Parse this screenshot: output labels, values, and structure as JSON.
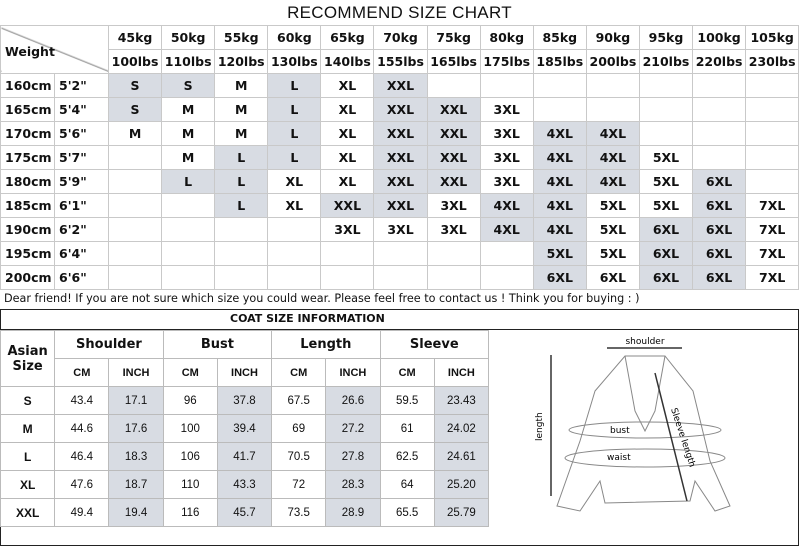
{
  "title": "RECOMMEND SIZE CHART",
  "corner_label": "Weight",
  "weights_kg": [
    "45kg",
    "50kg",
    "55kg",
    "60kg",
    "65kg",
    "70kg",
    "75kg",
    "80kg",
    "85kg",
    "90kg",
    "95kg",
    "100kg",
    "105kg"
  ],
  "weights_lbs": [
    "100lbs",
    "110lbs",
    "120lbs",
    "130lbs",
    "140lbs",
    "155lbs",
    "165lbs",
    "175lbs",
    "185lbs",
    "200lbs",
    "210lbs",
    "220lbs",
    "230lbs"
  ],
  "highlight_color": "#d8dce3",
  "rows": [
    {
      "cm": "160cm",
      "ft": "5'2\"",
      "sizes": [
        "S",
        "S",
        "M",
        "L",
        "XL",
        "XXL",
        "",
        "",
        "",
        "",
        "",
        "",
        ""
      ],
      "shaded": [
        0,
        1,
        3,
        5
      ]
    },
    {
      "cm": "165cm",
      "ft": "5'4\"",
      "sizes": [
        "S",
        "M",
        "M",
        "L",
        "XL",
        "XXL",
        "XXL",
        "3XL",
        "",
        "",
        "",
        "",
        ""
      ],
      "shaded": [
        0,
        3,
        5,
        6
      ]
    },
    {
      "cm": "170cm",
      "ft": "5'6\"",
      "sizes": [
        "M",
        "M",
        "M",
        "L",
        "XL",
        "XXL",
        "XXL",
        "3XL",
        "4XL",
        "4XL",
        "",
        "",
        ""
      ],
      "shaded": [
        3,
        5,
        6,
        8,
        9
      ]
    },
    {
      "cm": "175cm",
      "ft": "5'7\"",
      "sizes": [
        "",
        "M",
        "L",
        "L",
        "XL",
        "XXL",
        "XXL",
        "3XL",
        "4XL",
        "4XL",
        "5XL",
        "",
        ""
      ],
      "shaded": [
        2,
        3,
        5,
        6,
        8,
        9
      ]
    },
    {
      "cm": "180cm",
      "ft": "5'9\"",
      "sizes": [
        "",
        "L",
        "L",
        "XL",
        "XL",
        "XXL",
        "XXL",
        "3XL",
        "4XL",
        "4XL",
        "5XL",
        "6XL",
        ""
      ],
      "shaded": [
        1,
        2,
        5,
        6,
        8,
        9,
        11
      ]
    },
    {
      "cm": "185cm",
      "ft": "6'1\"",
      "sizes": [
        "",
        "",
        "L",
        "XL",
        "XXL",
        "XXL",
        "3XL",
        "4XL",
        "4XL",
        "5XL",
        "5XL",
        "6XL",
        "7XL"
      ],
      "shaded": [
        2,
        4,
        5,
        7,
        8,
        11
      ]
    },
    {
      "cm": "190cm",
      "ft": "6'2\"",
      "sizes": [
        "",
        "",
        "",
        "",
        "3XL",
        "3XL",
        "3XL",
        "4XL",
        "4XL",
        "5XL",
        "6XL",
        "6XL",
        "7XL"
      ],
      "shaded": [
        7,
        8,
        10,
        11
      ]
    },
    {
      "cm": "195cm",
      "ft": "6'4\"",
      "sizes": [
        "",
        "",
        "",
        "",
        "",
        "",
        "",
        "",
        "5XL",
        "5XL",
        "6XL",
        "6XL",
        "7XL"
      ],
      "shaded": [
        8,
        10,
        11
      ]
    },
    {
      "cm": "200cm",
      "ft": "6'6\"",
      "sizes": [
        "",
        "",
        "",
        "",
        "",
        "",
        "",
        "",
        "6XL",
        "6XL",
        "6XL",
        "6XL",
        "7XL"
      ],
      "shaded": [
        8,
        10,
        11
      ]
    }
  ],
  "note": "Dear friend! If you are not sure which size you could wear. Please feel free to contact us ! Think you for buying  : )",
  "coat": {
    "title": "COAT SIZE INFORMATION",
    "size_header": [
      "Asian",
      "Size"
    ],
    "groups": [
      "Shoulder",
      "Bust",
      "Length",
      "Sleeve"
    ],
    "units": [
      "CM",
      "INCH"
    ],
    "rows": [
      {
        "size": "S",
        "values": [
          "43.4",
          "17.1",
          "96",
          "37.8",
          "67.5",
          "26.6",
          "59.5",
          "23.43"
        ]
      },
      {
        "size": "M",
        "values": [
          "44.6",
          "17.6",
          "100",
          "39.4",
          "69",
          "27.2",
          "61",
          "24.02"
        ]
      },
      {
        "size": "L",
        "values": [
          "46.4",
          "18.3",
          "106",
          "41.7",
          "70.5",
          "27.8",
          "62.5",
          "24.61"
        ]
      },
      {
        "size": "XL",
        "values": [
          "47.6",
          "18.7",
          "110",
          "43.3",
          "72",
          "28.3",
          "64",
          "25.20"
        ]
      },
      {
        "size": "XXL",
        "values": [
          "49.4",
          "19.4",
          "116",
          "45.7",
          "73.5",
          "28.9",
          "65.5",
          "25.79"
        ]
      }
    ]
  },
  "diagram": {
    "shoulder": "shoulder",
    "length": "length",
    "bust": "bust",
    "waist": "waist",
    "sleeve": "Sleeve length"
  }
}
